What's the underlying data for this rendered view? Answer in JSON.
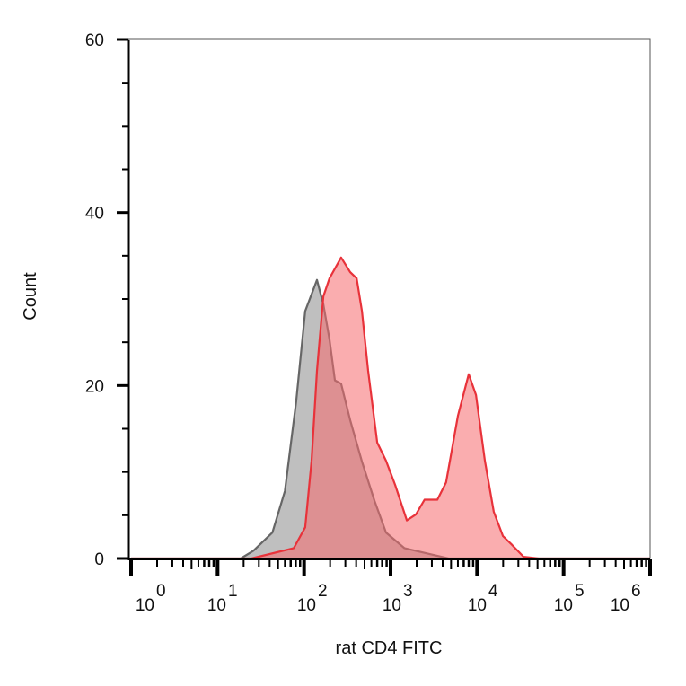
{
  "chart_data": {
    "type": "area",
    "title": "",
    "xlabel": "rat CD4 FITC",
    "ylabel": "Count",
    "xscale": "log",
    "xlim": [
      1,
      1000000
    ],
    "ylim": [
      0,
      60
    ],
    "grid": false,
    "yticks": [
      0,
      20,
      40,
      60
    ],
    "ytick_labels": [
      "0",
      "20",
      "40",
      "60"
    ],
    "xtick_labels": [
      {
        "base": "10",
        "exp": "0"
      },
      {
        "base": "10",
        "exp": "1"
      },
      {
        "base": "10",
        "exp": "2"
      },
      {
        "base": "10",
        "exp": "3"
      },
      {
        "base": "10",
        "exp": "4"
      },
      {
        "base": "10",
        "exp": "5"
      },
      {
        "base": "10",
        "exp": "6"
      }
    ],
    "series": [
      {
        "color": "#666666",
        "fill": "#a9a9a9",
        "points": [
          [
            18.5,
            0
          ],
          [
            26,
            0.9
          ],
          [
            43,
            3.0
          ],
          [
            60,
            7.8
          ],
          [
            81,
            18.2
          ],
          [
            103,
            28.6
          ],
          [
            141,
            32.2
          ],
          [
            167,
            29.4
          ],
          [
            197,
            25.3
          ],
          [
            227,
            20.6
          ],
          [
            268,
            20.2
          ],
          [
            341,
            16.0
          ],
          [
            466,
            11.2
          ],
          [
            650,
            6.7
          ],
          [
            886,
            3.0
          ],
          [
            1440,
            1.2
          ],
          [
            3150,
            0.4
          ],
          [
            4700,
            0
          ]
        ]
      },
      {
        "color": "#e8323a",
        "fill": "#f56a6e",
        "points": [
          [
            24.5,
            0
          ],
          [
            76,
            1.2
          ],
          [
            103,
            3.6
          ],
          [
            122,
            11.3
          ],
          [
            141,
            21.7
          ],
          [
            167,
            30.3
          ],
          [
            197,
            32.4
          ],
          [
            268,
            34.8
          ],
          [
            341,
            33.1
          ],
          [
            405,
            32.4
          ],
          [
            466,
            28.6
          ],
          [
            550,
            21.7
          ],
          [
            700,
            13.4
          ],
          [
            886,
            11.3
          ],
          [
            1130,
            8.5
          ],
          [
            1540,
            4.4
          ],
          [
            1960,
            5.1
          ],
          [
            2470,
            6.8
          ],
          [
            3470,
            6.8
          ],
          [
            4380,
            8.8
          ],
          [
            6000,
            16.5
          ],
          [
            8000,
            21.3
          ],
          [
            9700,
            18.9
          ],
          [
            12300,
            11.3
          ],
          [
            15600,
            5.4
          ],
          [
            19900,
            2.6
          ],
          [
            25200,
            1.6
          ],
          [
            34500,
            0.2
          ],
          [
            51700,
            0
          ]
        ]
      }
    ]
  }
}
